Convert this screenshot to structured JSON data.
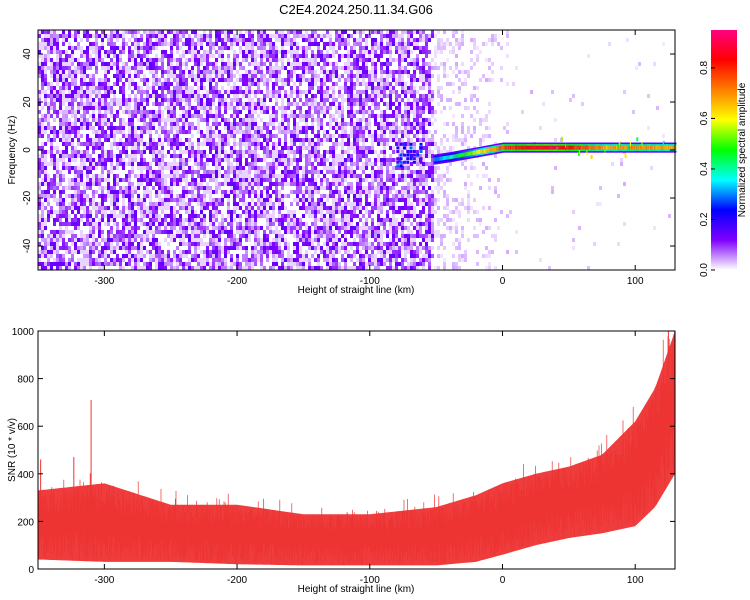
{
  "figure": {
    "title": "C2E4.2024.250.11.34.G06"
  },
  "chart_data": [
    {
      "type": "heatmap",
      "title": "C2E4.2024.250.11.34.G06",
      "xlabel": "Height of straight line (km)",
      "ylabel": "Frequency (Hz)",
      "xlim": [
        -350,
        130
      ],
      "ylim": [
        -50,
        50
      ],
      "x_ticks": [
        -300,
        -200,
        -100,
        0,
        100
      ],
      "y_ticks": [
        -40,
        -20,
        0,
        20,
        40
      ],
      "colorbar": {
        "label": "Normalized spectral amplitude",
        "range": [
          0,
          0.95
        ],
        "ticks": [
          0.0,
          0.2,
          0.4,
          0.6,
          0.8
        ],
        "tick_labels": [
          "0.0",
          "0.2",
          "0.4",
          "0.6",
          "0.8"
        ],
        "colormap": [
          "#ffffff",
          "#7f00ff",
          "#0000ff",
          "#00ffff",
          "#00ff00",
          "#ffff00",
          "#ff7f00",
          "#ff0000",
          "#ff0080"
        ]
      },
      "noise_region": {
        "x_range": [
          -350,
          -52
        ],
        "level": 0.08
      },
      "signal_track": {
        "x_start": -52,
        "x": [
          -52,
          -40,
          -30,
          -20,
          -10,
          0,
          20,
          40,
          60,
          80,
          100,
          130
        ],
        "frequency": [
          -4,
          -3,
          -2,
          -1,
          0,
          1,
          1,
          1,
          1,
          1,
          1,
          1
        ],
        "amplitude": [
          0.3,
          0.4,
          0.5,
          0.6,
          0.7,
          0.8,
          0.9,
          0.92,
          0.8,
          0.7,
          0.75,
          0.7
        ]
      },
      "blob": {
        "x_range": [
          -80,
          -62
        ],
        "frequency_range": [
          -6,
          3
        ],
        "amplitude": 0.25
      },
      "grid": false
    },
    {
      "type": "line",
      "xlabel": "Height of straight line (km)",
      "ylabel": "SNR (10 * v/v)",
      "xlim": [
        -350,
        130
      ],
      "ylim": [
        0,
        1000
      ],
      "x_ticks": [
        -300,
        -200,
        -100,
        0,
        100
      ],
      "y_ticks": [
        0,
        200,
        400,
        600,
        800,
        1000
      ],
      "series_color": "#ee3333",
      "envelope": {
        "x": [
          -350,
          -300,
          -250,
          -200,
          -150,
          -100,
          -50,
          -20,
          0,
          25,
          50,
          75,
          100,
          115,
          130
        ],
        "lower": [
          40,
          30,
          30,
          20,
          15,
          15,
          15,
          30,
          60,
          100,
          130,
          150,
          180,
          260,
          400
        ],
        "upper": [
          330,
          360,
          270,
          270,
          230,
          230,
          260,
          310,
          360,
          400,
          430,
          480,
          620,
          760,
          1000
        ]
      },
      "peaks": [
        {
          "x": -310,
          "y": 710
        },
        {
          "x": -348,
          "y": 460
        },
        {
          "x": -323,
          "y": 470
        },
        {
          "x": 125,
          "y": 1000
        }
      ],
      "grid": false
    }
  ]
}
